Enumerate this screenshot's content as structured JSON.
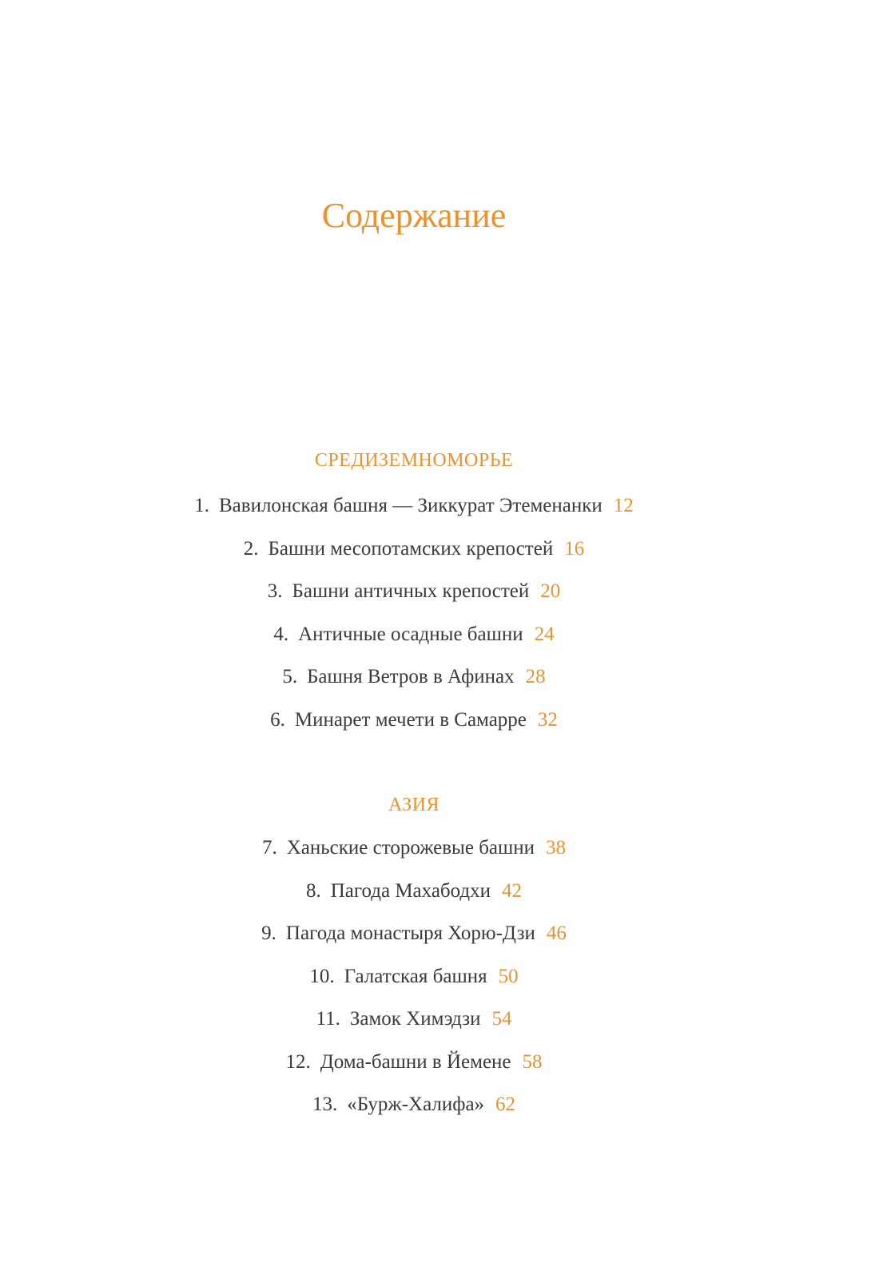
{
  "page": {
    "title": "Содержание",
    "colors": {
      "accent": "#e8932f",
      "text": "#3a3a3a",
      "background": "#ffffff"
    },
    "sections": [
      {
        "heading": "СРЕДИЗЕМНОМОРЬЕ",
        "items": [
          {
            "num": "1.",
            "label": "Вавилонская башня — Зиккурат Этеменанки",
            "page": "12"
          },
          {
            "num": "2.",
            "label": "Башни месопотамских крепостей",
            "page": "16"
          },
          {
            "num": "3.",
            "label": "Башни античных крепостей",
            "page": "20"
          },
          {
            "num": "4.",
            "label": "Античные осадные башни",
            "page": "24"
          },
          {
            "num": "5.",
            "label": "Башня Ветров в Афинах",
            "page": "28"
          },
          {
            "num": "6.",
            "label": "Минарет мечети в Самарре",
            "page": "32"
          }
        ]
      },
      {
        "heading": "АЗИЯ",
        "items": [
          {
            "num": "7.",
            "label": "Ханьские сторожевые башни",
            "page": "38"
          },
          {
            "num": "8.",
            "label": "Пагода Махабодхи",
            "page": "42"
          },
          {
            "num": "9.",
            "label": "Пагода монастыря Хорю-Дзи",
            "page": "46"
          },
          {
            "num": "10.",
            "label": "Галатская башня",
            "page": "50"
          },
          {
            "num": "11.",
            "label": "Замок Химэдзи",
            "page": "54"
          },
          {
            "num": "12.",
            "label": "Дома-башни в Йемене",
            "page": "58"
          },
          {
            "num": "13.",
            "label": "«Бурж-Халифа»",
            "page": "62"
          }
        ]
      }
    ]
  }
}
